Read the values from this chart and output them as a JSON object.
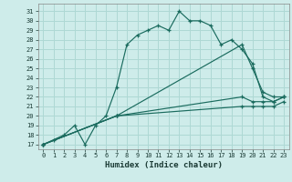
{
  "xlabel": "Humidex (Indice chaleur)",
  "bg_color": "#ceecea",
  "grid_color": "#aed8d4",
  "line_color": "#1a6b5e",
  "xlim": [
    -0.5,
    23.5
  ],
  "ylim": [
    16.5,
    31.8
  ],
  "yticks": [
    17,
    18,
    19,
    20,
    21,
    22,
    23,
    24,
    25,
    26,
    27,
    28,
    29,
    30,
    31
  ],
  "xticks": [
    0,
    1,
    2,
    3,
    4,
    5,
    6,
    7,
    8,
    9,
    10,
    11,
    12,
    13,
    14,
    15,
    16,
    17,
    18,
    19,
    20,
    21,
    22,
    23
  ],
  "lines": [
    {
      "x": [
        0,
        1,
        2,
        3,
        4,
        5,
        6,
        7,
        8,
        9,
        10,
        11,
        12,
        13,
        14,
        15,
        16,
        17,
        18,
        19,
        20,
        21,
        22,
        23
      ],
      "y": [
        17,
        17.5,
        18,
        19,
        17,
        19,
        20,
        23,
        27.5,
        28.5,
        29,
        29.5,
        29,
        31,
        30,
        30,
        29.5,
        27.5,
        28,
        27,
        25.5,
        22,
        21.5,
        22
      ]
    },
    {
      "x": [
        0,
        7,
        19,
        20,
        21,
        22,
        23
      ],
      "y": [
        17,
        20,
        27.5,
        25,
        22.5,
        22,
        22
      ]
    },
    {
      "x": [
        0,
        7,
        19,
        20,
        21,
        22,
        23
      ],
      "y": [
        17,
        20,
        22,
        21.5,
        21.5,
        21.5,
        22
      ]
    },
    {
      "x": [
        0,
        7,
        19,
        20,
        21,
        22,
        23
      ],
      "y": [
        17,
        20,
        21,
        21,
        21,
        21,
        21.5
      ]
    }
  ]
}
